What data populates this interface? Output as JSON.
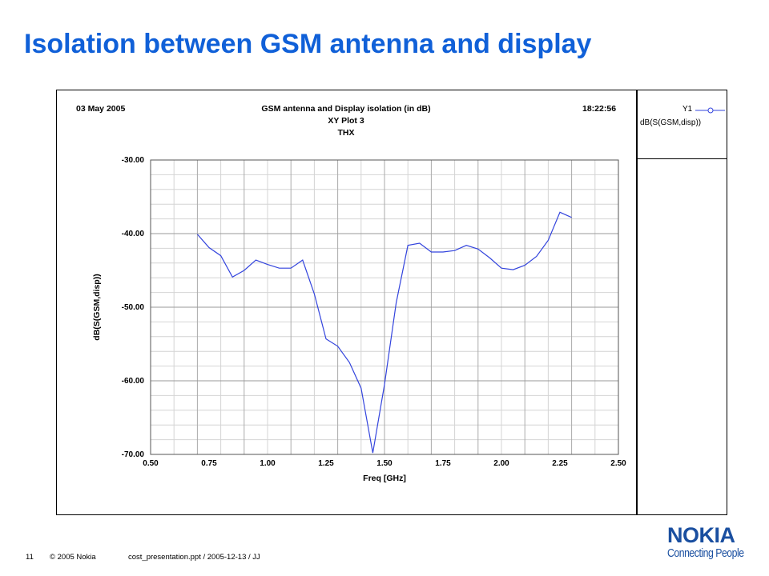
{
  "slide": {
    "title": "Isolation between GSM antenna and display"
  },
  "plot_header": {
    "date": "03 May 2005",
    "title_line1": "GSM antenna and Display isolation (in dB)",
    "title_line2": "XY Plot 3",
    "title_line3": "THX",
    "time": "18:22:56"
  },
  "legend": {
    "trace_label": "Y1",
    "trace_expr": "dB(S(GSM,disp))",
    "line_color": "#3344dd"
  },
  "footer": {
    "page_number": "11",
    "copyright": "© 2005  Nokia",
    "file_info": "cost_presentation.ppt / 2005-12-13 / JJ"
  },
  "logo": {
    "wordmark": "NOKIA",
    "tagline": "Connecting People",
    "color": "#1a4fa0"
  },
  "chart_data": {
    "type": "line",
    "title": "GSM antenna and Display isolation (in dB)",
    "xlabel": "Freq [GHz]",
    "ylabel": "dB(S(GSM,disp))",
    "xlim": [
      0.5,
      2.5
    ],
    "ylim": [
      -70,
      -30
    ],
    "x_ticks": [
      "0.50",
      "0.75",
      "1.00",
      "1.25",
      "1.50",
      "1.75",
      "2.00",
      "2.25",
      "2.50"
    ],
    "y_ticks": [
      "-30.00",
      "-40.00",
      "-50.00",
      "-60.00",
      "-70.00"
    ],
    "grid": true,
    "legend_position": "right panel",
    "series": [
      {
        "name": "dB(S(GSM,disp))",
        "color": "#3344dd",
        "x": [
          0.7,
          0.75,
          0.8,
          0.85,
          0.9,
          0.95,
          1.0,
          1.05,
          1.1,
          1.15,
          1.2,
          1.25,
          1.3,
          1.35,
          1.4,
          1.45,
          1.5,
          1.55,
          1.6,
          1.65,
          1.7,
          1.75,
          1.8,
          1.85,
          1.9,
          1.95,
          2.0,
          2.05,
          2.1,
          2.15,
          2.2,
          2.25,
          2.3
        ],
        "y": [
          -40.1,
          -41.9,
          -43.0,
          -45.9,
          -45.0,
          -43.6,
          -44.2,
          -44.7,
          -44.7,
          -43.6,
          -48.2,
          -54.3,
          -55.3,
          -57.5,
          -61.0,
          -69.8,
          -60.5,
          -49.4,
          -41.6,
          -41.3,
          -42.5,
          -42.5,
          -42.3,
          -41.6,
          -42.1,
          -43.3,
          -44.7,
          -44.9,
          -44.3,
          -43.1,
          -40.9,
          -37.1,
          -37.8
        ]
      }
    ]
  }
}
